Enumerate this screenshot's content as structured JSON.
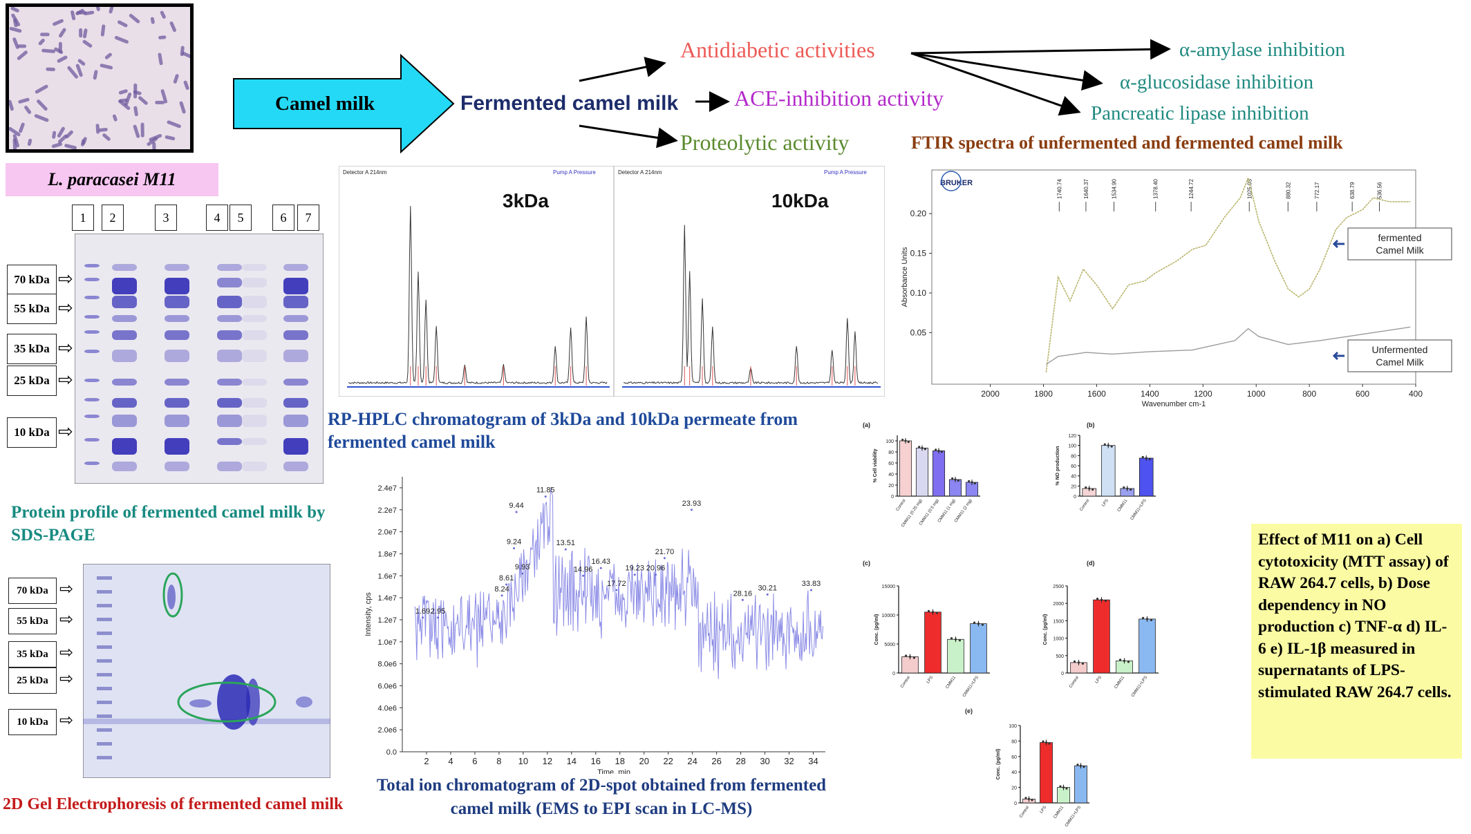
{
  "strain": {
    "label": "L. paracasei M11"
  },
  "flow": {
    "source": "Camel milk",
    "product": "Fermented camel milk",
    "activities": [
      {
        "label": "Antidiabetic activities",
        "color": "#ec5a56"
      },
      {
        "label": "ACE-inhibition activity",
        "color": "#b32ac9"
      },
      {
        "label": "Proteolytic activity",
        "color": "#5a8a2e"
      }
    ],
    "inhibitions": [
      {
        "label": "α-amylase inhibition"
      },
      {
        "label": "α-glucosidase inhibition"
      },
      {
        "label": "Pancreatic lipase inhibition"
      }
    ],
    "inhibition_color": "#1f8a80"
  },
  "sds_page": {
    "lanes": [
      "1",
      "2",
      "3",
      "4",
      "5",
      "6",
      "7"
    ],
    "markers": [
      "70 kDa",
      "55 kDa",
      "35 kDa",
      "25 kDa",
      "10 kDa"
    ],
    "caption": "Protein profile of fermented camel milk by SDS-PAGE"
  },
  "gel2d": {
    "markers": [
      "70 kDa",
      "55 kDa",
      "35 kDa",
      "25 kDa",
      "10 kDa"
    ],
    "caption": "2D Gel Electrophoresis of fermented camel milk"
  },
  "hplc": {
    "panels": [
      {
        "label": "3kDa",
        "header_left": "Detector A 214nm",
        "header_right": "Pump A Pressure"
      },
      {
        "label": "10kDa",
        "header_left": "Detector A 214nm",
        "header_right": "Pump A Pressure"
      }
    ],
    "caption": "RP-HPLC chromatogram of 3kDa and 10kDa permeate from fermented camel milk"
  },
  "tic": {
    "y_label": "Intensity, cps",
    "x_label": "Time, min",
    "y_ticks": [
      "0.0",
      "2.0e6",
      "4.0e6",
      "6.0e6",
      "8.0e6",
      "1.0e7",
      "1.2e7",
      "1.4e7",
      "1.6e7",
      "1.8e7",
      "2.0e7",
      "2.2e7",
      "2.4e7"
    ],
    "x_ticks": [
      "2",
      "4",
      "6",
      "8",
      "10",
      "12",
      "14",
      "16",
      "18",
      "20",
      "22",
      "24",
      "26",
      "28",
      "30",
      "32",
      "34"
    ],
    "peaks": [
      "1.69",
      "2.95",
      "8.24",
      "8.61",
      "9.24",
      "9.44",
      "9.93",
      "11.85",
      "13.51",
      "14.96",
      "16.43",
      "17.72",
      "19.23",
      "20.96",
      "21.70",
      "23.93",
      "28.16",
      "30.21",
      "33.83"
    ],
    "caption": "Total ion chromatogram of 2D-spot obtained from fermented camel milk (EMS to EPI scan in LC-MS)"
  },
  "ftir": {
    "title": "FTIR spectra of unfermented and fermented camel milk",
    "title_color": "#8a3d10",
    "brand": "BRUKER",
    "y_label": "Absorbance Units",
    "x_label": "Wavenumber cm-1",
    "y_ticks": [
      "0.05",
      "0.10",
      "0.15",
      "0.20"
    ],
    "x_ticks": [
      "2000",
      "1800",
      "1600",
      "1400",
      "1200",
      "1000",
      "800",
      "600",
      "400"
    ],
    "peak_labels": [
      "1740.74",
      "1640.37",
      "1534.90",
      "1378.40",
      "1244.72",
      "1025.93",
      "880.32",
      "772.17",
      "638.79",
      "536.56"
    ],
    "legend_fermented": "fermented Camel Milk",
    "legend_unfermented": "Unfermented Camel Milk"
  },
  "bars": {
    "panel_labels": [
      "(a)",
      "(b)",
      "(c)",
      "(d)",
      "(e)"
    ],
    "a": {
      "y_label": "% Cell viability",
      "y_ticks": [
        "0",
        "20",
        "40",
        "60",
        "80",
        "100"
      ],
      "categories": [
        "Control",
        "CMM11 (0.25 mg)",
        "CMM11 (0.5 mg)",
        "CMM11 (1 mg)",
        "CMM11 (2 mg)"
      ]
    },
    "b": {
      "y_label": "% NO production",
      "y_ticks": [
        "0",
        "20",
        "40",
        "60",
        "80",
        "100",
        "120"
      ],
      "categories": [
        "Control",
        "LPS",
        "CMM11",
        "CMM11+LPS"
      ]
    },
    "c": {
      "y_label": "Conc. (pg/ml)",
      "y_ticks": [
        "0",
        "5000",
        "10000",
        "15000"
      ],
      "categories": [
        "Control",
        "LPS",
        "CMM11",
        "CMM11+LPS"
      ]
    },
    "d": {
      "y_label": "Conc. (pg/ml)",
      "y_ticks": [
        "0",
        "500",
        "1000",
        "1500",
        "2000",
        "2500"
      ],
      "categories": [
        "Control",
        "LPS",
        "CMM11",
        "CMM11+LPS"
      ]
    },
    "e": {
      "y_label": "Conc. (pg/ml)",
      "y_ticks": [
        "0",
        "20",
        "40",
        "60",
        "80",
        "100"
      ],
      "categories": [
        "Control",
        "LPS",
        "CMM11",
        "CMM11+LPS"
      ]
    },
    "caption": "Effect of M11 on a) Cell cytotoxicity (MTT assay) of RAW 264.7 cells, b) Dose dependency in NO production c) TNF-α d) IL-6 e) IL-1β measured in supernatants of LPS-stimulated RAW 264.7 cells."
  },
  "chart_data": [
    {
      "type": "line",
      "title": "",
      "xlabel": "Time, min",
      "ylabel": "Intensity, cps",
      "xlim": [
        0,
        35
      ],
      "ylim": [
        0,
        25000000
      ],
      "x": [
        1.69,
        2.95,
        8.24,
        8.61,
        9.24,
        9.44,
        9.93,
        11.85,
        13.51,
        14.96,
        16.43,
        17.72,
        19.23,
        20.96,
        21.7,
        23.93,
        28.16,
        30.21,
        33.83
      ],
      "series": [
        {
          "values": [
            12200000,
            12200000,
            14200000,
            15200000,
            18500000,
            21800000,
            16200000,
            23200000,
            18400000,
            16000000,
            16700000,
            14700000,
            16100000,
            16100000,
            17600000,
            22000000,
            13800000,
            14300000,
            14700000
          ]
        }
      ],
      "annotations": [
        "1.69",
        "2.95",
        "8.24",
        "8.61",
        "9.24",
        "9.44",
        "9.93",
        "11.85",
        "13.51",
        "14.96",
        "16.43",
        "17.72",
        "19.23",
        "20.96",
        "21.70",
        "23.93",
        "28.16",
        "30.21",
        "33.83"
      ]
    },
    {
      "type": "bar",
      "title": "",
      "ylabel": "% Cell viability",
      "categories": [
        "Control",
        "CMM11 (0.25 mg)",
        "CMM11 (0.5 mg)",
        "CMM11 (1 mg)",
        "CMM11 (2 mg)"
      ],
      "values": [
        100,
        87,
        82,
        30,
        25
      ],
      "ylim": [
        0,
        110
      ],
      "colors": [
        "#f7d1d1",
        "#d8d8f0",
        "#7f6ff0",
        "#8b86f2",
        "#8b86f2"
      ]
    },
    {
      "type": "bar",
      "title": "",
      "ylabel": "% NO production",
      "categories": [
        "Control",
        "LPS",
        "CMM11",
        "CMM11+LPS"
      ],
      "values": [
        15,
        100,
        15,
        75
      ],
      "ylim": [
        0,
        120
      ],
      "colors": [
        "#f4d4d4",
        "#cfe0f5",
        "#9aa0ef",
        "#4e52ef"
      ]
    },
    {
      "type": "bar",
      "title": "",
      "ylabel": "Conc. (pg/ml)",
      "categories": [
        "Control",
        "LPS",
        "CMM11",
        "CMM11+LPS"
      ],
      "values": [
        2800,
        10500,
        5800,
        8500
      ],
      "ylim": [
        0,
        15000
      ],
      "colors": [
        "#f4cccc",
        "#ee2c2c",
        "#c9f1c9",
        "#8ab8f1"
      ]
    },
    {
      "type": "bar",
      "title": "",
      "ylabel": "Conc. (pg/ml)",
      "categories": [
        "Control",
        "LPS",
        "CMM11",
        "CMM11+LPS"
      ],
      "values": [
        300,
        2100,
        350,
        1550
      ],
      "ylim": [
        0,
        2500
      ],
      "colors": [
        "#f4cccc",
        "#ee2c2c",
        "#c9f1c9",
        "#8ab8f1"
      ]
    },
    {
      "type": "bar",
      "title": "",
      "ylabel": "Conc. (pg/ml)",
      "categories": [
        "Control",
        "LPS",
        "CMM11",
        "CMM11+LPS"
      ],
      "values": [
        5,
        78,
        20,
        48
      ],
      "ylim": [
        0,
        100
      ],
      "colors": [
        "#f4cccc",
        "#ee2c2c",
        "#c9f1c9",
        "#8ab8f1"
      ]
    }
  ]
}
